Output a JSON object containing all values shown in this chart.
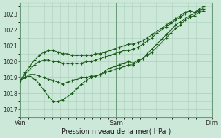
{
  "title": "Pression niveau de la mer( hPa )",
  "ylabel_ticks": [
    1017,
    1018,
    1019,
    1020,
    1021,
    1022,
    1023
  ],
  "ylim": [
    1016.6,
    1023.7
  ],
  "xlim": [
    0,
    48
  ],
  "xtick_positions": [
    0,
    24,
    48
  ],
  "xtick_labels": [
    "Ven",
    "Sam",
    "Dim"
  ],
  "bg_color": "#cce8d8",
  "grid_color": "#aacfbc",
  "line_color": "#1a5c1a",
  "series1": [
    1018.8,
    1019.0,
    1019.1,
    1018.9,
    1018.6,
    1018.2,
    1017.8,
    1017.5,
    1017.5,
    1017.6,
    1017.8,
    1018.0,
    1018.3,
    1018.6,
    1018.8,
    1019.0,
    1019.1,
    1019.2,
    1019.4,
    1019.6,
    1019.7,
    1019.8,
    1019.9,
    1020.0,
    1019.9,
    1020.1,
    1020.2,
    1020.4,
    1020.6,
    1020.9,
    1021.2,
    1021.5,
    1021.8,
    1022.1,
    1022.3,
    1022.6,
    1022.8,
    1022.9,
    1023.1,
    1023.2
  ],
  "series2": [
    1018.8,
    1019.0,
    1019.2,
    1019.2,
    1019.1,
    1019.0,
    1018.9,
    1018.8,
    1018.7,
    1018.6,
    1018.7,
    1018.8,
    1018.9,
    1019.0,
    1019.0,
    1019.1,
    1019.1,
    1019.2,
    1019.3,
    1019.4,
    1019.5,
    1019.6,
    1019.7,
    1019.8,
    1019.8,
    1020.0,
    1020.2,
    1020.5,
    1020.8,
    1021.1,
    1021.4,
    1021.7,
    1022.0,
    1022.3,
    1022.5,
    1022.7,
    1022.9,
    1023.0,
    1023.2,
    1023.3
  ],
  "series3": [
    1018.8,
    1019.2,
    1019.5,
    1019.8,
    1020.0,
    1020.1,
    1020.1,
    1020.0,
    1020.0,
    1019.9,
    1019.9,
    1019.9,
    1019.9,
    1019.9,
    1020.0,
    1020.0,
    1020.1,
    1020.2,
    1020.3,
    1020.4,
    1020.5,
    1020.6,
    1020.7,
    1020.7,
    1020.8,
    1020.9,
    1021.1,
    1021.3,
    1021.5,
    1021.8,
    1022.0,
    1022.2,
    1022.4,
    1022.6,
    1022.8,
    1023.0,
    1023.2,
    1023.1,
    1023.2,
    1023.4
  ],
  "series4": [
    1018.8,
    1019.3,
    1019.7,
    1020.1,
    1020.4,
    1020.6,
    1020.7,
    1020.7,
    1020.6,
    1020.5,
    1020.5,
    1020.4,
    1020.4,
    1020.4,
    1020.4,
    1020.4,
    1020.5,
    1020.5,
    1020.6,
    1020.7,
    1020.8,
    1020.9,
    1021.0,
    1021.1,
    1021.1,
    1021.2,
    1021.3,
    1021.5,
    1021.7,
    1021.9,
    1022.1,
    1022.3,
    1022.5,
    1022.7,
    1022.9,
    1023.1,
    1023.2,
    1023.1,
    1023.3,
    1023.5
  ]
}
